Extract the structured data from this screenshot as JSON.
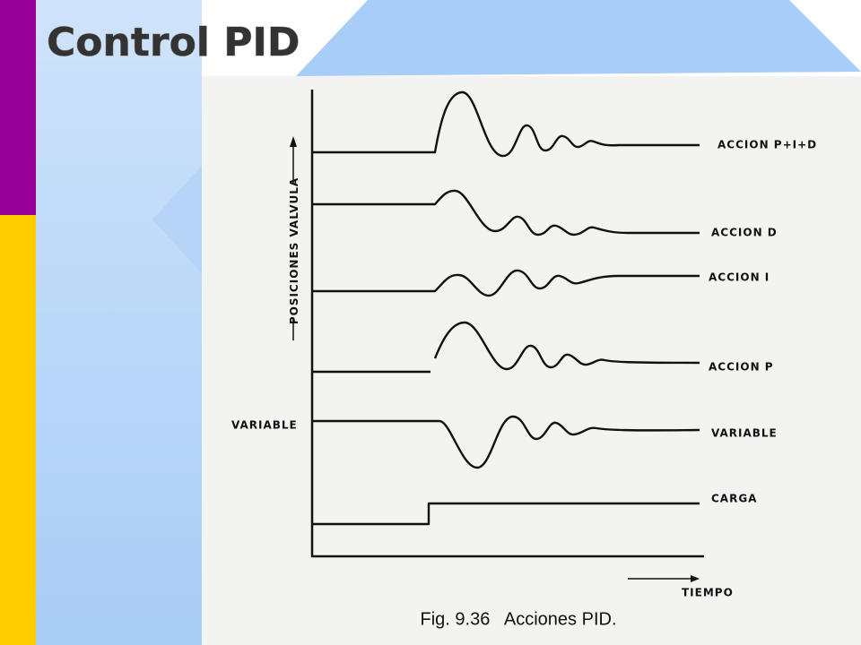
{
  "header": {
    "title": "Control PID"
  },
  "figure": {
    "y_axis_label": "POSICIONES VALVULA",
    "x_axis_label": "TIEMPO",
    "curves": [
      {
        "label": "ACCION P+I+D"
      },
      {
        "label": "ACCION D"
      },
      {
        "label": "ACCION I"
      },
      {
        "label": "ACCION P"
      },
      {
        "label": "VARIABLE"
      },
      {
        "label": "CARGA"
      }
    ],
    "left_label": "VARIABLE",
    "caption": "Fig. 9.36   Acciones PID."
  }
}
